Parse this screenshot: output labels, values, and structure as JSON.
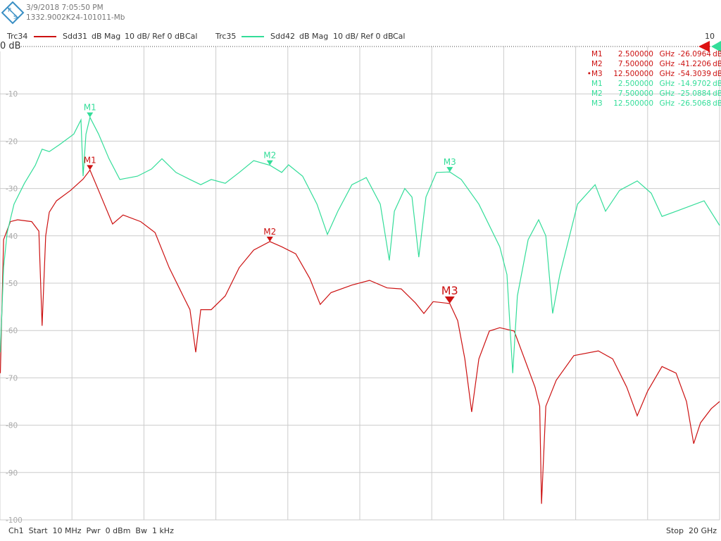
{
  "header": {
    "logo": "R&S",
    "timestamp": "3/9/2018 7:05:50 PM",
    "device_id": "1332.9002K24-101011-Mb"
  },
  "legend": [
    {
      "trace": "Trc34",
      "param": "Sdd31",
      "format": "dB Mag",
      "scale": "10 dB/ Ref 0 dB",
      "cal": "Cal",
      "color": "#cc1111"
    },
    {
      "trace": "Trc35",
      "param": "Sdd42",
      "format": "dB Mag",
      "scale": "10 dB/ Ref 0 dB",
      "cal": "Cal",
      "color": "#33dd99"
    }
  ],
  "ref_label": "0 dB",
  "ref_right_label": "10",
  "footer": {
    "left": "Ch1  Start  10 MHz  Pwr  0 dBm  Bw  1 kHz",
    "right": "Stop  20 GHz"
  },
  "marker_table": [
    {
      "active": "",
      "name": "M1",
      "freq": "2.500000",
      "unit": "GHz",
      "value": "-26.0964",
      "vunit": "dB",
      "color": "#cc1111"
    },
    {
      "active": "",
      "name": "M2",
      "freq": "7.500000",
      "unit": "GHz",
      "value": "-41.2206",
      "vunit": "dB",
      "color": "#cc1111"
    },
    {
      "active": "•",
      "name": "M3",
      "freq": "12.500000",
      "unit": "GHz",
      "value": "-54.3039",
      "vunit": "dB",
      "color": "#cc1111"
    },
    {
      "active": "",
      "name": "M1",
      "freq": "2.500000",
      "unit": "GHz",
      "value": "-14.9702",
      "vunit": "dB",
      "color": "#33dd99"
    },
    {
      "active": "",
      "name": "M2",
      "freq": "7.500000",
      "unit": "GHz",
      "value": "-25.0884",
      "vunit": "dB",
      "color": "#33dd99"
    },
    {
      "active": "",
      "name": "M3",
      "freq": "12.500000",
      "unit": "GHz",
      "value": "-26.5068",
      "vunit": "dB",
      "color": "#33dd99"
    }
  ],
  "chart_data": {
    "type": "line",
    "xlim": [
      0.01,
      20
    ],
    "xunit": "GHz",
    "ylim": [
      -100,
      0
    ],
    "yticks": [
      "-10",
      "-20",
      "-30",
      "-40",
      "-50",
      "-60",
      "-70",
      "-80",
      "-90",
      "-100"
    ],
    "grid": true,
    "series": [
      {
        "name": "Trc34 Sdd31",
        "color": "#cc1111",
        "x": [
          0.01,
          0.1,
          0.29,
          0.49,
          0.88,
          1.08,
          1.17,
          1.27,
          1.37,
          1.57,
          1.96,
          2.31,
          2.5,
          2.74,
          3.13,
          3.42,
          3.91,
          4.31,
          4.7,
          5.09,
          5.28,
          5.44,
          5.58,
          5.87,
          6.26,
          6.65,
          7.05,
          7.5,
          7.83,
          8.22,
          8.61,
          8.9,
          9.2,
          9.78,
          10.27,
          10.76,
          11.15,
          11.55,
          11.78,
          12.04,
          12.5,
          12.72,
          12.92,
          13.11,
          13.31,
          13.6,
          13.89,
          14.29,
          14.58,
          14.87,
          15.0,
          15.05,
          15.17,
          15.46,
          15.95,
          16.63,
          17.03,
          17.42,
          17.71,
          18.0,
          18.4,
          18.79,
          19.08,
          19.28,
          19.47,
          19.77,
          20.0
        ],
        "y": [
          -69,
          -40.8,
          -37,
          -36.6,
          -37,
          -39,
          -59,
          -40,
          -35,
          -32.6,
          -30.4,
          -28,
          -26.1,
          -30.4,
          -37.5,
          -35.6,
          -37,
          -39.3,
          -46.7,
          -52.7,
          -55.6,
          -64.6,
          -55.6,
          -55.6,
          -52.7,
          -46.7,
          -43,
          -41.2,
          -42.3,
          -43.8,
          -49,
          -54.5,
          -52,
          -50.4,
          -49.4,
          -51,
          -51.2,
          -54.2,
          -56.4,
          -53.9,
          -54.3,
          -57.9,
          -66,
          -77.2,
          -66,
          -60.1,
          -59.4,
          -60.1,
          -66,
          -72,
          -76,
          -96.6,
          -76,
          -70.5,
          -65.3,
          -64.3,
          -66,
          -72,
          -78,
          -72.8,
          -67.6,
          -69,
          -75,
          -83.9,
          -79.5,
          -76.5,
          -75
        ]
      },
      {
        "name": "Trc35 Sdd42",
        "color": "#33dd99",
        "x": [
          0.01,
          0.1,
          0.2,
          0.39,
          0.68,
          0.98,
          1.17,
          1.37,
          1.66,
          2.05,
          2.25,
          2.31,
          2.39,
          2.5,
          2.74,
          3.03,
          3.33,
          3.82,
          4.21,
          4.5,
          4.89,
          5.28,
          5.58,
          5.87,
          6.26,
          6.65,
          7.05,
          7.5,
          7.83,
          8.02,
          8.41,
          8.81,
          9.1,
          9.39,
          9.78,
          10.18,
          10.57,
          10.82,
          10.96,
          11.25,
          11.45,
          11.64,
          11.84,
          12.13,
          12.5,
          12.82,
          13.31,
          13.89,
          14.09,
          14.25,
          14.38,
          14.68,
          14.97,
          15.17,
          15.36,
          15.56,
          16.05,
          16.54,
          16.83,
          17.22,
          17.71,
          18.1,
          18.4,
          18.79,
          19.57,
          20.0
        ],
        "y": [
          -64.6,
          -46.7,
          -39.3,
          -33.3,
          -28.9,
          -25.1,
          -21.7,
          -22.2,
          -20.7,
          -18.5,
          -15.5,
          -27.4,
          -18.5,
          -14.97,
          -18.5,
          -23.7,
          -28.1,
          -27.4,
          -25.9,
          -23.7,
          -26.6,
          -28.1,
          -29.2,
          -28.1,
          -28.9,
          -26.6,
          -24.1,
          -25.09,
          -26.6,
          -25,
          -27.4,
          -33.3,
          -39.7,
          -34.8,
          -29.2,
          -27.7,
          -33.3,
          -45.2,
          -34.8,
          -30,
          -31.8,
          -44.5,
          -31.8,
          -26.6,
          -26.51,
          -28.1,
          -33.3,
          -42.3,
          -48.2,
          -69,
          -52.7,
          -40.8,
          -36.6,
          -40,
          -56.4,
          -48.2,
          -33.3,
          -29.2,
          -34.8,
          -30.4,
          -28.4,
          -31,
          -35.9,
          -34.8,
          -32.6,
          -37.8
        ]
      }
    ],
    "markers": [
      {
        "series": 0,
        "name": "M1",
        "x": 2.5,
        "y": -26.0964
      },
      {
        "series": 0,
        "name": "M2",
        "x": 7.5,
        "y": -41.2206
      },
      {
        "series": 0,
        "name": "M3",
        "x": 12.5,
        "y": -54.3039,
        "active": true
      },
      {
        "series": 1,
        "name": "M1",
        "x": 2.5,
        "y": -14.9702
      },
      {
        "series": 1,
        "name": "M2",
        "x": 7.5,
        "y": -25.0884
      },
      {
        "series": 1,
        "name": "M3",
        "x": 12.5,
        "y": -26.5068
      }
    ]
  }
}
